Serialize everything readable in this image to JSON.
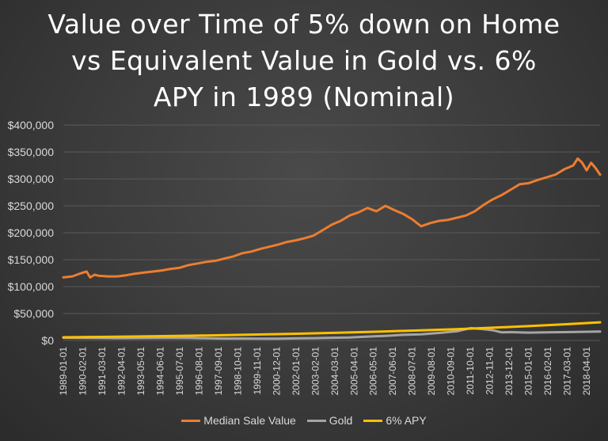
{
  "title_lines": [
    "Value over Time of 5% down on Home",
    "vs Equivalent Value in Gold vs. 6%",
    "APY in 1989 (Nominal)"
  ],
  "colors": {
    "median": "#ED7D31",
    "gold": "#A5A5A5",
    "apy": "#FFC000",
    "gridline": "#595959",
    "axis_text": "#d9d9d9"
  },
  "chart_data": {
    "type": "line",
    "title": "Value over Time of 5% down on Home vs Equivalent Value in Gold vs. 6% APY in 1989 (Nominal)",
    "xlabel": "",
    "ylabel": "",
    "ylim": [
      0,
      400000
    ],
    "yticks": [
      0,
      50000,
      100000,
      150000,
      200000,
      250000,
      300000,
      350000,
      400000
    ],
    "ytick_labels": [
      "$0",
      "$50,000",
      "$100,000",
      "$150,000",
      "$200,000",
      "$250,000",
      "$300,000",
      "$350,000",
      "$400,000"
    ],
    "grid": true,
    "legend_position": "bottom",
    "x_tick_labels": [
      "1989-01-01",
      "1990-02-01",
      "1991-03-01",
      "1992-04-01",
      "1993-05-01",
      "1994-06-01",
      "1995-07-01",
      "1996-08-01",
      "1997-09-01",
      "1998-10-01",
      "1999-11-01",
      "2000-12-01",
      "2002-01-01",
      "2003-02-01",
      "2004-03-01",
      "2005-04-01",
      "2006-05-01",
      "2007-06-01",
      "2008-07-01",
      "2009-08-01",
      "2010-09-01",
      "2011-10-01",
      "2012-11-01",
      "2013-12-01",
      "2015-01-01",
      "2016-02-01",
      "2017-03-01",
      "2018-04-01"
    ],
    "x_years": [
      1989.0,
      1990.083,
      1991.167,
      1992.25,
      1993.333,
      1994.417,
      1995.5,
      1996.583,
      1997.667,
      1998.75,
      1999.833,
      2000.917,
      2002.0,
      2003.083,
      2004.167,
      2005.25,
      2006.333,
      2007.417,
      2008.5,
      2009.583,
      2010.667,
      2011.75,
      2012.833,
      2013.917,
      2015.0,
      2016.083,
      2017.167,
      2018.25
    ],
    "x_range": [
      1989.0,
      2019.0
    ],
    "series": [
      {
        "name": "Median Sale Value",
        "x": [
          1989.0,
          1989.5,
          1990.0,
          1990.3,
          1990.5,
          1990.75,
          1991.0,
          1991.5,
          1992.0,
          1992.5,
          1993.0,
          1993.5,
          1994.0,
          1994.5,
          1995.0,
          1995.5,
          1996.0,
          1996.5,
          1997.0,
          1997.5,
          1998.0,
          1998.5,
          1999.0,
          1999.5,
          2000.0,
          2000.5,
          2001.0,
          2001.5,
          2002.0,
          2002.5,
          2003.0,
          2003.5,
          2004.0,
          2004.5,
          2005.0,
          2005.5,
          2006.0,
          2006.5,
          2007.0,
          2007.5,
          2008.0,
          2008.5,
          2009.0,
          2009.5,
          2010.0,
          2010.5,
          2011.0,
          2011.5,
          2012.0,
          2012.5,
          2013.0,
          2013.5,
          2014.0,
          2014.5,
          2015.0,
          2015.5,
          2016.0,
          2016.5,
          2017.0,
          2017.5,
          2017.75,
          2018.0,
          2018.25,
          2018.5,
          2018.75,
          2019.0
        ],
        "values": [
          117000,
          119000,
          125000,
          128000,
          117000,
          122000,
          120000,
          119000,
          119000,
          121000,
          124000,
          126000,
          128000,
          130000,
          133000,
          135000,
          140000,
          143000,
          146000,
          148000,
          152000,
          156000,
          162000,
          165000,
          170000,
          174000,
          178000,
          183000,
          186000,
          190000,
          195000,
          205000,
          215000,
          222000,
          232000,
          238000,
          246000,
          240000,
          250000,
          242000,
          235000,
          225000,
          212000,
          218000,
          222000,
          224000,
          228000,
          232000,
          240000,
          252000,
          262000,
          270000,
          280000,
          290000,
          292000,
          298000,
          303000,
          308000,
          318000,
          325000,
          338000,
          330000,
          316000,
          330000,
          320000,
          308000
        ]
      },
      {
        "name": "Gold",
        "x": [
          1989.0,
          1990.0,
          1991.0,
          1992.0,
          1993.0,
          1994.0,
          1995.0,
          1996.0,
          1997.0,
          1998.0,
          1999.0,
          2000.0,
          2001.0,
          2002.0,
          2003.0,
          2004.0,
          2005.0,
          2006.0,
          2007.0,
          2008.0,
          2009.0,
          2010.0,
          2011.0,
          2011.75,
          2012.5,
          2013.0,
          2013.5,
          2014.0,
          2015.0,
          2016.0,
          2017.0,
          2018.0,
          2019.0
        ],
        "values": [
          5000,
          4800,
          4500,
          4300,
          4400,
          4600,
          4700,
          4600,
          4000,
          3600,
          3500,
          3400,
          3300,
          3800,
          4300,
          5000,
          5500,
          7200,
          8500,
          10500,
          11500,
          14000,
          17000,
          23000,
          21000,
          19000,
          15000,
          15500,
          14500,
          15000,
          15500,
          16000,
          16500
        ]
      },
      {
        "name": "6% APY",
        "x": [
          1989.0,
          1991.0,
          1993.0,
          1995.0,
          1997.0,
          1999.0,
          2001.0,
          2003.0,
          2005.0,
          2007.0,
          2009.0,
          2011.0,
          2013.0,
          2015.0,
          2017.0,
          2019.0
        ],
        "values": [
          5850,
          6570,
          7380,
          8300,
          9330,
          10480,
          11780,
          13230,
          14870,
          16710,
          18770,
          21100,
          23700,
          26630,
          29930,
          33630
        ]
      }
    ]
  }
}
